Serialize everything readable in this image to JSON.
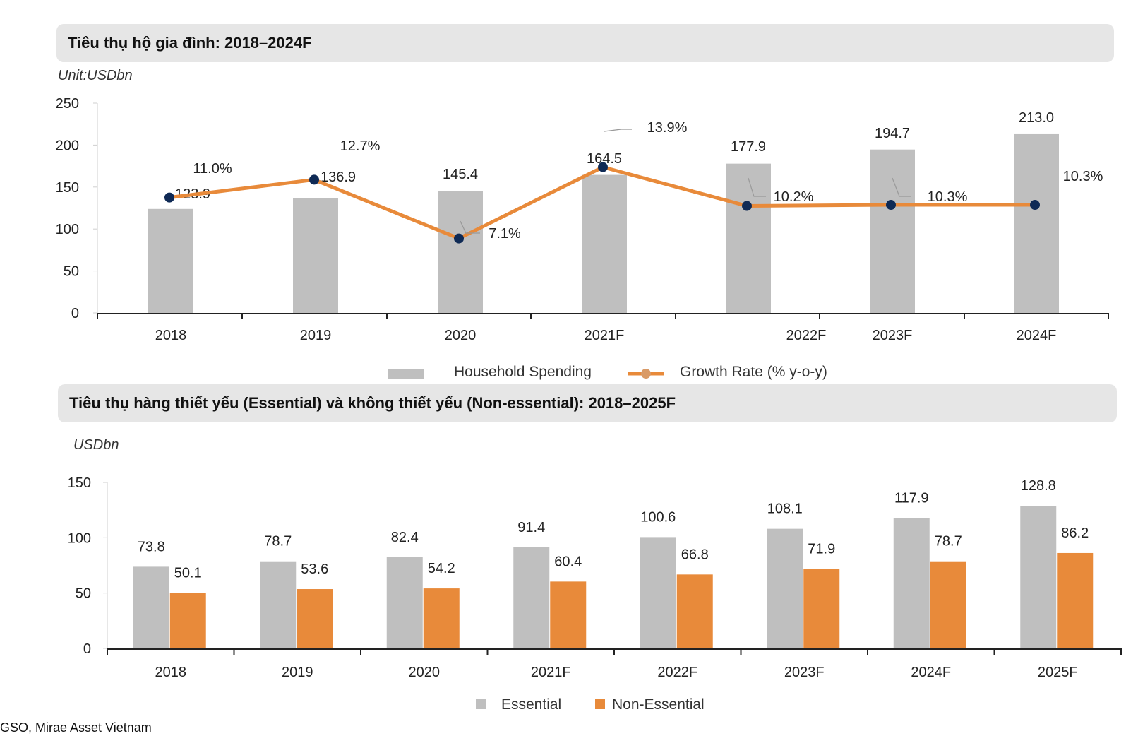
{
  "chart_data": [
    {
      "type": "bar",
      "title": "Tiêu thụ hộ gia đình: 2018–2024F",
      "unit_label": "Unit:USDbn",
      "categories": [
        "2018",
        "2019",
        "2020",
        "2021F",
        "2022F",
        "2023F",
        "2024F"
      ],
      "series": [
        {
          "name": "Household Spending",
          "type": "bar",
          "values": [
            123.9,
            136.9,
            145.4,
            164.5,
            177.9,
            194.7,
            213.0
          ],
          "labels": [
            "123.9",
            "136.9",
            "145.4",
            "164.5",
            "177.9",
            "194.7",
            "213.0"
          ],
          "color": "#bfbfbf"
        },
        {
          "name": "Growth Rate (% y-o-y)",
          "type": "line",
          "values": [
            11.0,
            12.7,
            7.1,
            13.9,
            10.2,
            10.3,
            10.3
          ],
          "labels": [
            "11.0%",
            "12.7%",
            "7.1%",
            "13.9%",
            "10.2%",
            "10.3%",
            "10.3%"
          ],
          "color": "#e88a3a",
          "marker_color": "#0f2a55"
        }
      ],
      "yticks": [
        "0",
        "50",
        "100",
        "150",
        "200",
        "250"
      ],
      "ylim": [
        0,
        250
      ],
      "legend_position": "bottom"
    },
    {
      "type": "bar",
      "title": "Tiêu thụ hàng thiết yếu (Essential) và không thiết yếu (Non-essential): 2018–2025F",
      "unit_label": "USDbn",
      "categories": [
        "2018",
        "2019",
        "2020",
        "2021F",
        "2022F",
        "2023F",
        "2024F",
        "2025F"
      ],
      "series": [
        {
          "name": "Essential",
          "values": [
            73.8,
            78.7,
            82.4,
            91.4,
            100.6,
            108.1,
            117.9,
            128.8
          ],
          "labels": [
            "73.8",
            "78.7",
            "82.4",
            "91.4",
            "100.6",
            "108.1",
            "117.9",
            "128.8"
          ],
          "color": "#bfbfbf"
        },
        {
          "name": "Non-Essential",
          "values": [
            50.1,
            53.6,
            54.2,
            60.4,
            66.8,
            71.9,
            78.7,
            86.2
          ],
          "labels": [
            "50.1",
            "53.6",
            "54.2",
            "60.4",
            "66.8",
            "71.9",
            "78.7",
            "86.2"
          ],
          "color": "#e88a3a"
        }
      ],
      "yticks": [
        "0",
        "50",
        "100",
        "150"
      ],
      "ylim": [
        0,
        150
      ],
      "legend_position": "bottom"
    }
  ],
  "source": "GSO, Mirae Asset Vietnam"
}
